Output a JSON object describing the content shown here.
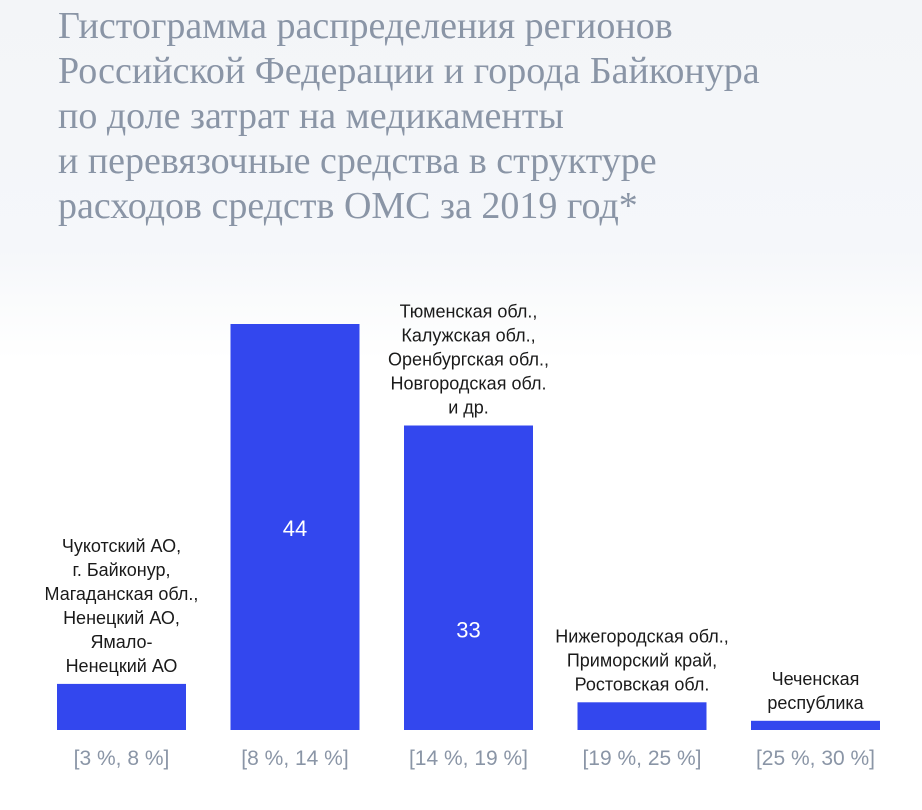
{
  "title_lines": [
    "Гистограмма распределения регионов",
    "Российской Федерации и города Байконура",
    "по доле затрат на медикаменты",
    "и перевязочные средства в структуре",
    "расходов средств ОМС за 2019 год*"
  ],
  "colors": {
    "bar": "#3347ee",
    "title": "#8a95a6",
    "tick": "#8a95a6",
    "annotation": "#1a1a1a",
    "value_label": "#ffffff"
  },
  "chart_data": {
    "type": "bar",
    "title": "Гистограмма распределения регионов Российской Федерации и города Байконура по доле затрат на медикаменты и перевязочные средства в структуре расходов средств ОМС за 2019 год*",
    "categories": [
      "[3 %, 8 %]",
      "[8 %, 14 %]",
      "[14 %, 19 %]",
      "[19 %, 25 %]",
      "[25 %, 30 %]"
    ],
    "values": [
      5,
      44,
      33,
      3,
      1
    ],
    "value_labels": [
      "",
      "44",
      "33",
      "",
      ""
    ],
    "annotations": [
      [
        "Чукотский АО,",
        "г. Байконур,",
        "Магаданская обл.,",
        "Ненецкий АО,",
        "Ямало-",
        "Ненецкий АО"
      ],
      [],
      [
        "Тюменская обл.,",
        "Калужская обл.,",
        "Оренбургская обл.,",
        "Новгородская обл.",
        "и др."
      ],
      [
        "Нижегородская обл.,",
        "Приморский край,",
        "Ростовская обл."
      ],
      [
        "Чеченская",
        "республика"
      ]
    ],
    "xlabel": "",
    "ylabel": "",
    "ylim": [
      0,
      44
    ],
    "grid": false,
    "legend": "none"
  }
}
